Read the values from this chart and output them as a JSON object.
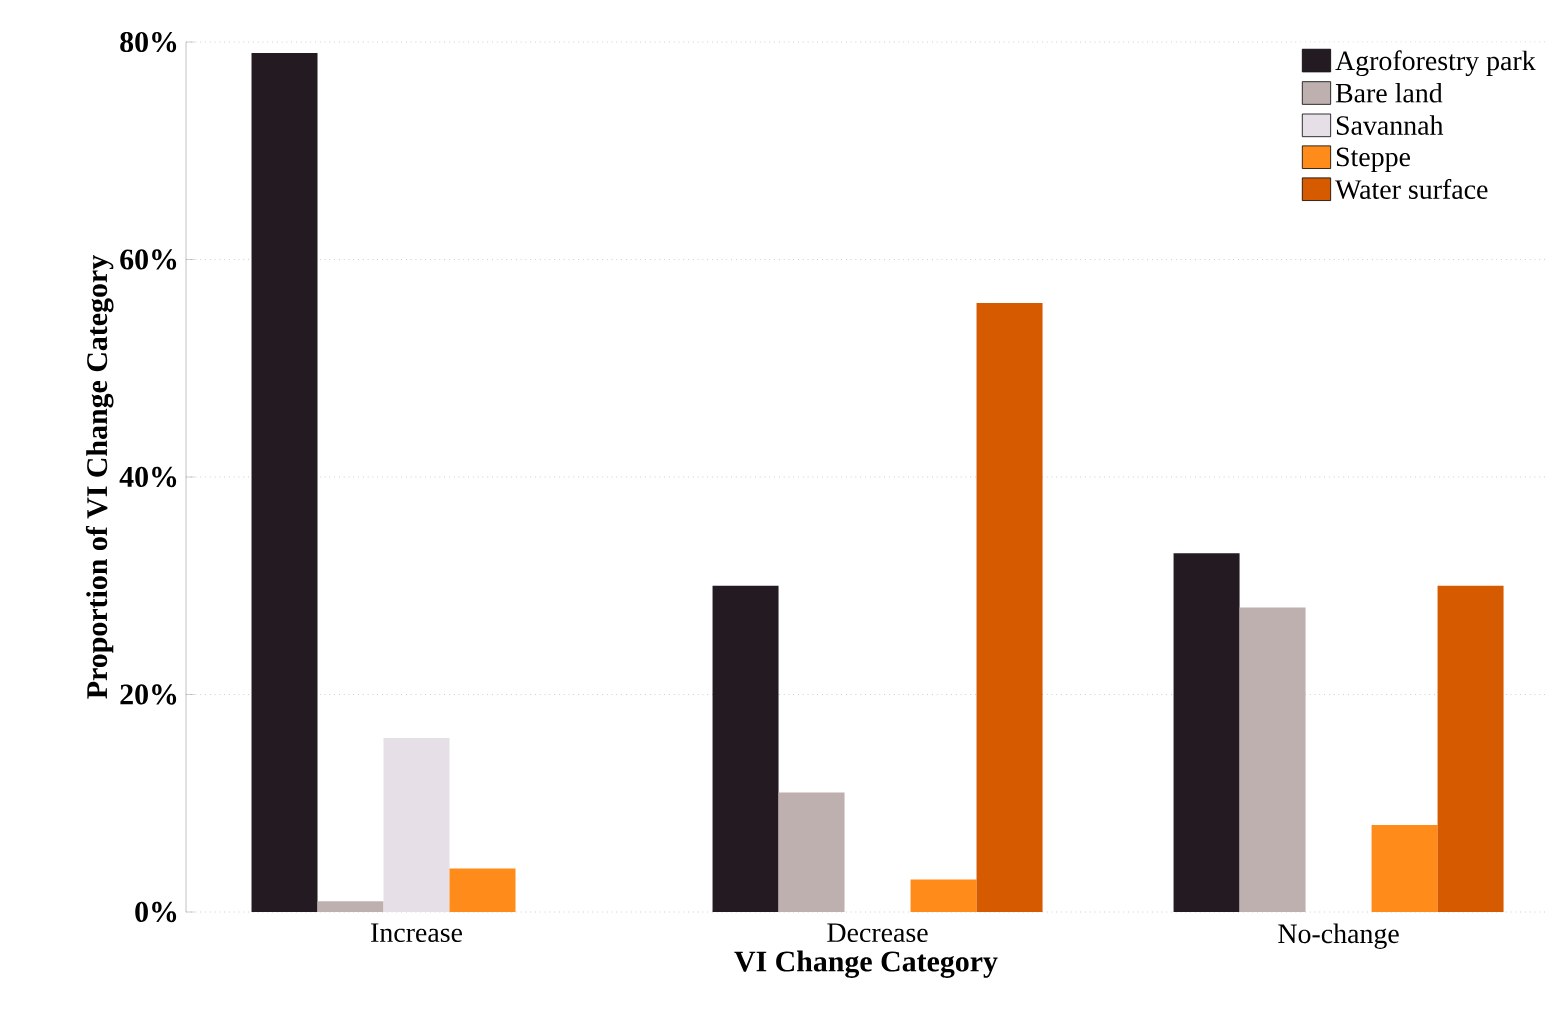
{
  "chart_data": {
    "type": "bar",
    "xlabel": "VI Change Category",
    "ylabel": "Proportion of VI Change Category",
    "categories": [
      "Increase",
      "Decrease",
      "No-change"
    ],
    "series": [
      {
        "name": "Agroforestry park",
        "color": "#231a22",
        "values": [
          79,
          30,
          33
        ]
      },
      {
        "name": "Bare land",
        "color": "#bfb0b0",
        "values": [
          1,
          11,
          28
        ]
      },
      {
        "name": "Savannah",
        "color": "#e6dfe8",
        "values": [
          16,
          0,
          0
        ]
      },
      {
        "name": "Steppe",
        "color": "#ff8c1a",
        "values": [
          4,
          3,
          8
        ]
      },
      {
        "name": "Water surface",
        "color": "#d55a00",
        "values": [
          0,
          56,
          30
        ]
      }
    ],
    "ylim": [
      0,
      80
    ],
    "yticks": [
      {
        "value": 0,
        "label": "0%"
      },
      {
        "value": 20,
        "label": "20%"
      },
      {
        "value": 40,
        "label": "40%"
      },
      {
        "value": 60,
        "label": "60%"
      },
      {
        "value": 80,
        "label": "80%"
      }
    ],
    "grid": "y",
    "legend": "top right"
  }
}
